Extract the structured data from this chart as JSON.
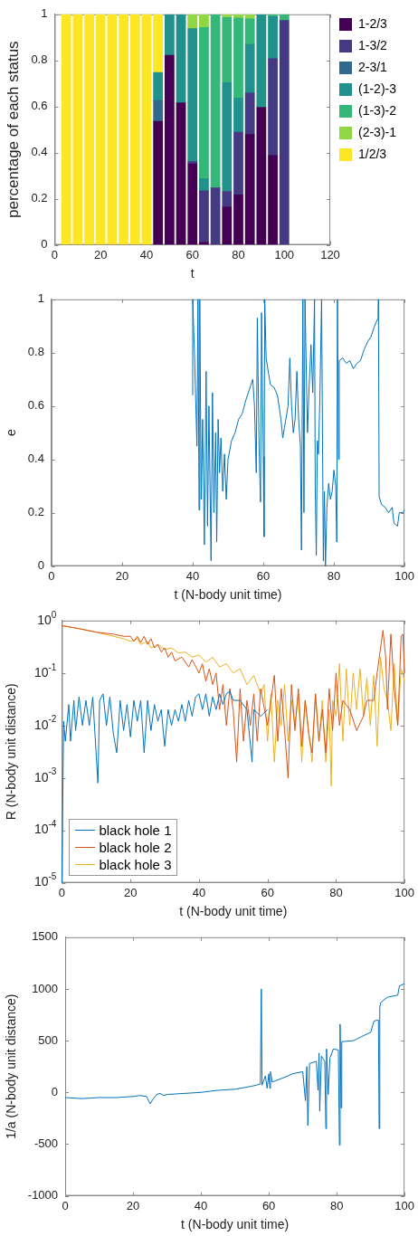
{
  "chart_data": [
    {
      "type": "bar",
      "stacked": true,
      "xlabel": "t",
      "ylabel": "percentage of each status",
      "legend": "right",
      "x": [
        5,
        10,
        15,
        20,
        25,
        30,
        35,
        40,
        45,
        50,
        55,
        60,
        65,
        70,
        75,
        80,
        85,
        90,
        95,
        100
      ],
      "xlim": [
        0,
        120
      ],
      "xticks": [
        0,
        20,
        40,
        60,
        80,
        100,
        120
      ],
      "ylim": [
        0,
        1
      ],
      "yticks": [
        0,
        0.2,
        0.4,
        0.6,
        0.8,
        1
      ],
      "series": [
        {
          "name": "1-2/3",
          "color": "#440154",
          "values": [
            null,
            null,
            null,
            null,
            null,
            null,
            null,
            null,
            0.536,
            0.822,
            0.616,
            0.351,
            0.012,
            null,
            0.164,
            0.217,
            0.479,
            0.597,
            0.388,
            null
          ]
        },
        {
          "name": "1-3/2",
          "color": "#443983",
          "values": [
            null,
            null,
            null,
            null,
            null,
            null,
            null,
            null,
            null,
            null,
            null,
            0.01,
            0.223,
            0.247,
            0.068,
            0.272,
            0.179,
            null,
            0.42,
            0.973
          ]
        },
        {
          "name": "2-3/1",
          "color": "#31688e",
          "values": [
            null,
            null,
            null,
            null,
            null,
            null,
            null,
            null,
            0.09,
            null,
            null,
            null,
            null,
            null,
            null,
            null,
            null,
            null,
            null,
            null
          ]
        },
        {
          "name": "(1-2)-3",
          "color": "#21918c",
          "values": [
            null,
            null,
            null,
            null,
            null,
            null,
            null,
            null,
            0.122,
            0.178,
            0.384,
            0.577,
            0.053,
            null,
            0.472,
            0.147,
            0.211,
            0.403,
            0.182,
            null
          ]
        },
        {
          "name": "(1-3)-2",
          "color": "#35b779",
          "values": [
            null,
            null,
            null,
            null,
            null,
            null,
            null,
            null,
            null,
            null,
            null,
            null,
            0.655,
            0.753,
            0.282,
            0.348,
            0.111,
            null,
            0.01,
            0.027
          ]
        },
        {
          "name": "(2-3)-1",
          "color": "#90d743",
          "values": [
            null,
            null,
            null,
            null,
            null,
            null,
            null,
            null,
            null,
            null,
            null,
            0.062,
            0.057,
            null,
            0.014,
            0.016,
            0.02,
            null,
            null,
            null
          ]
        },
        {
          "name": "1/2/3",
          "color": "#fde725",
          "values": [
            1,
            1,
            1,
            1,
            1,
            1,
            1,
            1,
            0.252,
            null,
            null,
            null,
            null,
            null,
            null,
            null,
            null,
            null,
            null,
            null
          ]
        }
      ]
    },
    {
      "type": "line",
      "xlabel": "t (N-body unit time)",
      "ylabel": "e",
      "xlim": [
        0,
        100
      ],
      "xticks": [
        0,
        20,
        40,
        60,
        80,
        100
      ],
      "ylim": [
        0,
        1
      ],
      "yticks": [
        0,
        0.2,
        0.4,
        0.6,
        0.8,
        1
      ],
      "series": [
        {
          "color": "#0072bd",
          "x": [
            40,
            40.01,
            40.5,
            41.2,
            41.5,
            41.8,
            42,
            42.4,
            42.8,
            43.3,
            43.8,
            44.2,
            44.6,
            45.2,
            45.6,
            46,
            46.5,
            46.8,
            47.2,
            47.6,
            48,
            48.5,
            49,
            49.5,
            50,
            51,
            52,
            53,
            54,
            55,
            56,
            57,
            57.5,
            58,
            58.3,
            58.8,
            59.2,
            59.5,
            60,
            60.2,
            60.4,
            60.8,
            61.5,
            62,
            63,
            64,
            65,
            65.5,
            66,
            67,
            67.5,
            68,
            68.5,
            69,
            69.5,
            70,
            70.5,
            70.8,
            71.2,
            71.5,
            71.8,
            72.5,
            73,
            73.5,
            74,
            74.5,
            74.7,
            75,
            75.3,
            75.6,
            76,
            76.5,
            77,
            77.3,
            77.6,
            78,
            78.5,
            79,
            79.5,
            80,
            80.5,
            80.8,
            81,
            81.3,
            81.5,
            82.5,
            83.5,
            84.5,
            85.5,
            86.5,
            87.5,
            88.5,
            89.5,
            90.5,
            91.5,
            92.5,
            92.6,
            92.8,
            93.5,
            94.5,
            95.5,
            96.5,
            97,
            98,
            98.5,
            99.5,
            100
          ],
          "values": [
            0.64,
            1,
            0.8,
            0.45,
            1,
            0.21,
            1,
            0.25,
            0.55,
            0.08,
            0.73,
            0.15,
            0.6,
            0.02,
            0.65,
            0.2,
            0.5,
            0.09,
            0.55,
            0.35,
            0.48,
            0.28,
            0.42,
            0.25,
            0.4,
            0.47,
            0.5,
            0.55,
            0.57,
            0.62,
            0.66,
            0.7,
            0.6,
            0.35,
            0.93,
            0.45,
            0.24,
            0.95,
            0.41,
            0.11,
            1,
            0.78,
            0.72,
            0.68,
            0.67,
            0.64,
            0.55,
            0.48,
            0.52,
            0.6,
            0.78,
            0.6,
            0.5,
            0.55,
            0.73,
            0.55,
            0.45,
            0.06,
            1,
            0.2,
            1,
            0.5,
            0.68,
            0.83,
            0.65,
            1,
            0.3,
            0.04,
            0.47,
            0.42,
            0.62,
            1,
            0.02,
            0.28,
            0,
            0.22,
            0.31,
            0.25,
            0.28,
            0.36,
            0.3,
            0.09,
            1,
            0.4,
            0.77,
            0.78,
            0.76,
            0.77,
            0.74,
            0.76,
            0.77,
            0.81,
            0.84,
            0.86,
            0.9,
            0.93,
            1,
            0.26,
            0.23,
            0.22,
            0.2,
            0.22,
            0.16,
            0.15,
            0.2,
            0.2,
            0.21
          ]
        }
      ]
    },
    {
      "type": "line",
      "log": "y",
      "legend": "bottom left",
      "xlabel": "t (N-body unit time)",
      "ylabel": "R (N-body unit distance)",
      "xlim": [
        0,
        100
      ],
      "xticks": [
        0,
        20,
        40,
        60,
        80,
        100
      ],
      "ylim": [
        1e-05,
        1
      ],
      "yticks": [
        {
          "value": 1e-05,
          "label": "10$^{-5}$"
        },
        {
          "value": 0.0001,
          "label": "10$^{-4}$"
        },
        {
          "value": 0.001,
          "label": "10$^{-3}$"
        },
        {
          "value": 0.01,
          "label": "10$^{-2}$"
        },
        {
          "value": 0.1,
          "label": "10$^{-1}$"
        },
        {
          "value": 1,
          "label": "10$^{0}$"
        }
      ],
      "series": [
        {
          "name": "black hole 1",
          "color": "#0072bd",
          "x": [
            0,
            0.2,
            0.5,
            1,
            2,
            2.5,
            3.5,
            4,
            5,
            6,
            7,
            8,
            9,
            10.5,
            11,
            12,
            13,
            14,
            15,
            16,
            17,
            18,
            19,
            20,
            21,
            22,
            23,
            24,
            25,
            26,
            27,
            28,
            29,
            30,
            31,
            32,
            33,
            34,
            35,
            36,
            37,
            38,
            39,
            40,
            41,
            42,
            43,
            44,
            45,
            46,
            47,
            48,
            49,
            50,
            52,
            54,
            55.5,
            56,
            58,
            60
          ],
          "values": [
            1e-05,
            0.0002,
            0.012,
            0.005,
            0.025,
            0.005,
            0.03,
            0.008,
            0.035,
            0.01,
            0.03,
            0.01,
            0.035,
            0.0008,
            0.03,
            0.04,
            0.01,
            0.035,
            0.007,
            0.003,
            0.03,
            0.008,
            0.025,
            0.006,
            0.03,
            0.012,
            0.03,
            0.003,
            0.03,
            0.008,
            0.025,
            0.012,
            0.02,
            0.004,
            0.02,
            0.01,
            0.02,
            0.012,
            0.025,
            0.012,
            0.03,
            0.015,
            0.035,
            0.04,
            0.02,
            0.04,
            0.015,
            0.035,
            0.02,
            0.04,
            0.025,
            0.04,
            0.045,
            0.03,
            0.03,
            0.02,
            0.002,
            0.02,
            0.015,
            0.02
          ]
        },
        {
          "name": "black hole 2",
          "color": "#d95319",
          "x": [
            0,
            5,
            10,
            15,
            18,
            20,
            21,
            22,
            23,
            24,
            25,
            26,
            27,
            28,
            29,
            30,
            31,
            32,
            33,
            35,
            37,
            38,
            40,
            41,
            42,
            43,
            44,
            45,
            46,
            47,
            48,
            49,
            50,
            51,
            52,
            53,
            54,
            55,
            56,
            57,
            58,
            60,
            62,
            63,
            64,
            65,
            66,
            67,
            68,
            69,
            70,
            71,
            72,
            73,
            74,
            75,
            76,
            77,
            78,
            79,
            80,
            81,
            82,
            84,
            86,
            88,
            89,
            91,
            92,
            93,
            93.7,
            94.5,
            95,
            96,
            97,
            98,
            99,
            99.5,
            100
          ],
          "values": [
            0.8,
            0.7,
            0.6,
            0.55,
            0.5,
            0.5,
            0.4,
            0.5,
            0.38,
            0.5,
            0.35,
            0.45,
            0.3,
            0.35,
            0.25,
            0.3,
            0.2,
            0.25,
            0.17,
            0.2,
            0.13,
            0.18,
            0.1,
            0.15,
            0.07,
            0.12,
            0.06,
            0.1,
            0.02,
            0.06,
            0.01,
            0.05,
            0.02,
            0.002,
            0.05,
            0.005,
            0.03,
            0.01,
            0.04,
            0.005,
            0.05,
            0.01,
            0.09,
            0.005,
            0.05,
            0.008,
            0.001,
            0.06,
            0.008,
            0.05,
            0.004,
            0.03,
            0.007,
            0.003,
            0.04,
            0.005,
            0.02,
            0.003,
            0.05,
            0.008,
            0.1,
            0.01,
            0.03,
            0.02,
            0.008,
            0.015,
            0.03,
            0.03,
            0.1,
            0.3,
            0.65,
            0.2,
            0.02,
            0.55,
            0.05,
            0.01,
            0.5,
            0.55,
            0.1
          ]
        },
        {
          "name": "black hole 3",
          "color": "#edb120",
          "x": [
            0,
            5,
            10,
            15,
            18,
            20,
            22,
            23,
            25,
            26,
            28,
            30,
            32,
            34,
            36,
            38,
            40,
            42,
            44,
            46,
            48,
            50,
            52,
            54,
            56,
            58,
            59,
            60,
            61,
            62,
            63,
            64,
            65,
            66,
            67,
            68,
            69,
            70,
            71,
            72,
            73,
            74,
            75,
            76,
            77,
            78,
            78.6,
            79,
            80,
            81,
            82,
            83,
            84,
            85,
            86,
            87,
            88,
            89,
            90,
            91,
            92,
            93,
            94,
            95,
            96,
            97,
            98,
            99,
            100
          ],
          "values": [
            0.8,
            0.7,
            0.6,
            0.5,
            0.45,
            0.4,
            0.45,
            0.35,
            0.4,
            0.3,
            0.35,
            0.28,
            0.3,
            0.24,
            0.25,
            0.2,
            0.22,
            0.16,
            0.2,
            0.13,
            0.15,
            0.1,
            0.12,
            0.06,
            0.09,
            0.04,
            0.06,
            0.005,
            0.04,
            0.002,
            0.03,
            0.01,
            0.06,
            0.005,
            0.03,
            0.01,
            0.04,
            0.002,
            0.03,
            0.008,
            0.002,
            0.04,
            0.005,
            0.03,
            0.002,
            0.02,
            0.0007,
            0.03,
            0.015,
            0.15,
            0.005,
            0.12,
            0.01,
            0.1,
            0.02,
            0.12,
            0.015,
            0.08,
            0.01,
            0.09,
            0.004,
            0.2,
            0.05,
            0.03,
            0.008,
            0.15,
            0.01,
            0.12,
            0.07
          ]
        }
      ]
    },
    {
      "type": "line",
      "xlabel": "t (N-body unit time)",
      "ylabel": "1/a (N-body unit distance)",
      "xlim": [
        0,
        100
      ],
      "xticks": [
        0,
        20,
        40,
        60,
        80,
        100
      ],
      "ylim": [
        -1000,
        1500
      ],
      "yticks": [
        -1000,
        -500,
        0,
        500,
        1000,
        1500
      ],
      "series": [
        {
          "color": "#0072bd",
          "x": [
            0,
            5,
            10,
            15,
            20,
            22,
            24,
            25,
            26,
            27,
            28,
            29,
            30,
            35,
            40,
            45,
            50,
            55,
            57.5,
            57.8,
            58,
            59,
            59.5,
            60,
            60.3,
            60.5,
            61,
            65,
            67,
            70,
            70.8,
            71.2,
            71.5,
            72,
            74,
            74.5,
            74.8,
            75,
            75.5,
            76.5,
            76.8,
            77,
            77.5,
            78,
            79,
            80.5,
            80.8,
            81,
            81.3,
            81.5,
            85,
            88,
            90,
            91,
            92.3,
            92.5,
            92.7,
            93,
            95,
            98,
            98.5,
            100
          ],
          "values": [
            -50,
            -60,
            -50,
            -50,
            -40,
            -30,
            -40,
            -110,
            -60,
            -20,
            -10,
            -30,
            -20,
            -10,
            0,
            20,
            30,
            60,
            80,
            1000,
            70,
            160,
            40,
            180,
            40,
            200,
            100,
            150,
            180,
            200,
            -80,
            250,
            -320,
            280,
            300,
            20,
            380,
            -180,
            350,
            300,
            -350,
            420,
            -20,
            330,
            420,
            410,
            -510,
            660,
            -150,
            490,
            500,
            550,
            580,
            690,
            700,
            -350,
            820,
            870,
            920,
            940,
            1030,
            1050
          ]
        }
      ]
    }
  ]
}
